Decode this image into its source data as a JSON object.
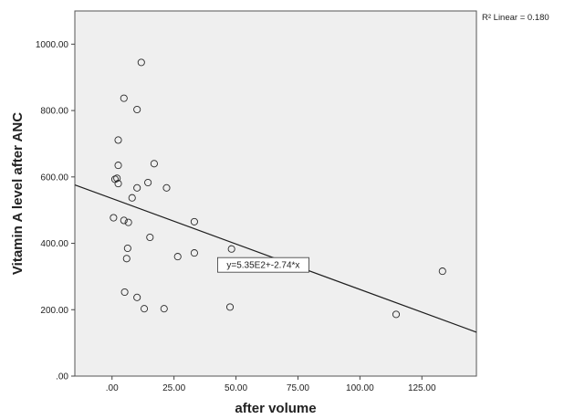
{
  "chart_data": {
    "type": "scatter",
    "title": "",
    "xlabel": "after volume",
    "ylabel": "Vitamin A level after ANC",
    "xlim": [
      -15,
      147
    ],
    "ylim": [
      0,
      1100
    ],
    "x_ticks": [
      {
        "value": 0,
        "label": ".00"
      },
      {
        "value": 25,
        "label": "25.00"
      },
      {
        "value": 50,
        "label": "50.00"
      },
      {
        "value": 75,
        "label": "75.00"
      },
      {
        "value": 100,
        "label": "100.00"
      },
      {
        "value": 125,
        "label": "125.00"
      }
    ],
    "y_ticks": [
      {
        "value": 0,
        "label": ".00"
      },
      {
        "value": 200,
        "label": "200.00"
      },
      {
        "value": 400,
        "label": "400.00"
      },
      {
        "value": 600,
        "label": "600.00"
      },
      {
        "value": 800,
        "label": "800.00"
      },
      {
        "value": 1000,
        "label": "1000.00"
      }
    ],
    "points": [
      {
        "x": 11.8,
        "y": 945
      },
      {
        "x": 4.8,
        "y": 837
      },
      {
        "x": 10.1,
        "y": 803
      },
      {
        "x": 2.5,
        "y": 711
      },
      {
        "x": 2.5,
        "y": 635
      },
      {
        "x": 17.0,
        "y": 640
      },
      {
        "x": 1.2,
        "y": 593
      },
      {
        "x": 2.0,
        "y": 596
      },
      {
        "x": 2.5,
        "y": 580
      },
      {
        "x": 14.5,
        "y": 583
      },
      {
        "x": 10.1,
        "y": 567
      },
      {
        "x": 22.0,
        "y": 567
      },
      {
        "x": 8.1,
        "y": 537
      },
      {
        "x": 0.6,
        "y": 477
      },
      {
        "x": 4.8,
        "y": 469
      },
      {
        "x": 6.6,
        "y": 463
      },
      {
        "x": 33.2,
        "y": 465
      },
      {
        "x": 15.3,
        "y": 418
      },
      {
        "x": 6.3,
        "y": 385
      },
      {
        "x": 5.9,
        "y": 354
      },
      {
        "x": 26.5,
        "y": 360
      },
      {
        "x": 33.2,
        "y": 371
      },
      {
        "x": 48.2,
        "y": 383
      },
      {
        "x": 5.1,
        "y": 253
      },
      {
        "x": 10.1,
        "y": 237
      },
      {
        "x": 13.0,
        "y": 203
      },
      {
        "x": 21.0,
        "y": 203
      },
      {
        "x": 47.6,
        "y": 208
      },
      {
        "x": 114.6,
        "y": 186
      },
      {
        "x": 133.3,
        "y": 316
      }
    ],
    "fit_line": {
      "intercept": 535,
      "slope": -2.74,
      "label": "y=5.35E2+-2.74*x",
      "label_anchor": {
        "x": 61,
        "y": 335
      }
    },
    "r_squared_label": "R² Linear = 0.180",
    "grid": false,
    "legend": "none",
    "colors": {
      "plot_background": "#efefef",
      "marker_stroke": "#2a2a2a",
      "line": "#1e1e1e"
    }
  }
}
